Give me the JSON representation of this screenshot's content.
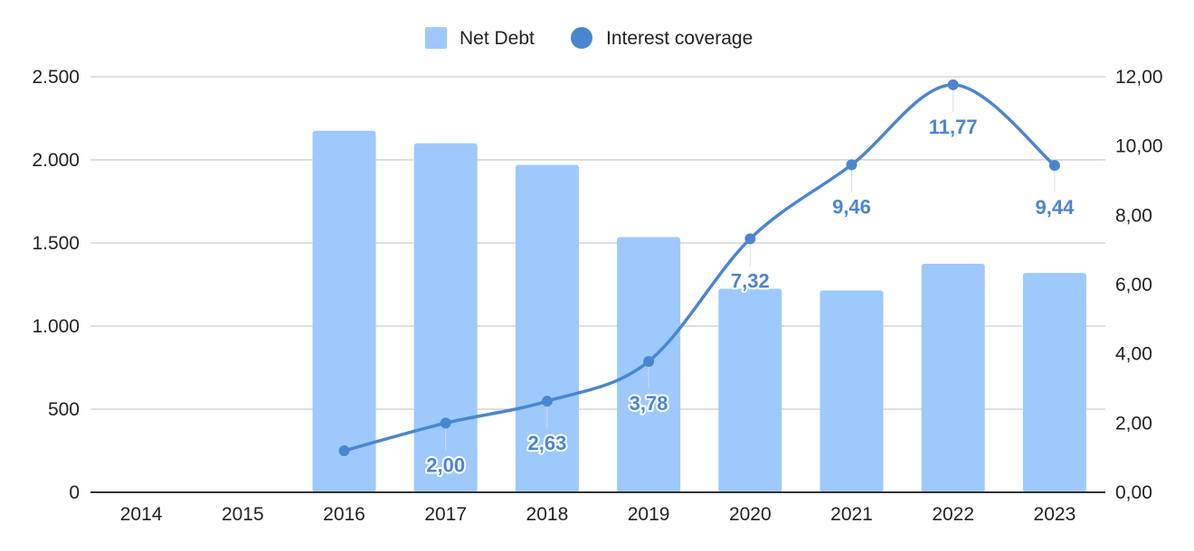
{
  "chart_data": {
    "type": "bar",
    "categories": [
      "2014",
      "2015",
      "2016",
      "2017",
      "2018",
      "2019",
      "2020",
      "2021",
      "2022",
      "2023"
    ],
    "series": [
      {
        "name": "Net Debt",
        "type": "bar",
        "axis": "left",
        "color": "#9ec9fd",
        "values": [
          null,
          null,
          2175,
          2100,
          1970,
          1535,
          1225,
          1215,
          1375,
          1320
        ]
      },
      {
        "name": "Interest coverage",
        "type": "line",
        "axis": "right",
        "color": "#4a86d0",
        "smooth": true,
        "values": [
          null,
          null,
          1.2,
          2.0,
          2.63,
          3.78,
          7.32,
          9.46,
          11.77,
          9.44
        ],
        "data_labels": [
          null,
          null,
          null,
          "2,00",
          "2,63",
          "3,78",
          "7,32",
          "9,46",
          "11,77",
          "9,44"
        ]
      }
    ],
    "y_left": {
      "range": [
        0,
        2500
      ],
      "ticks": [
        0,
        500,
        1000,
        1500,
        2000,
        2500
      ],
      "tick_labels": [
        "0",
        "500",
        "1.000",
        "1.500",
        "2.000",
        "2.500"
      ]
    },
    "y_right": {
      "range": [
        0,
        12
      ],
      "ticks": [
        0,
        2,
        4,
        6,
        8,
        10,
        12
      ],
      "tick_labels": [
        "0,00",
        "2,00",
        "4,00",
        "6,00",
        "8,00",
        "10,00",
        "12,00"
      ]
    },
    "title": "",
    "xlabel": "",
    "ylabel": "",
    "grid": true,
    "legend": {
      "position": "top-center",
      "entries": [
        "Net Debt",
        "Interest coverage"
      ]
    }
  }
}
